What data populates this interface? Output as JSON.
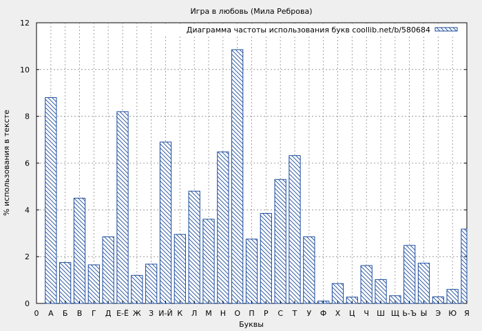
{
  "chart_data": {
    "type": "bar",
    "title": "Игра в любовь (Мила Реброва)",
    "xlabel": "Буквы",
    "ylabel": "% использования в тексте",
    "legend": "Диаграмма частоты использования букв coollib.net/b/580684",
    "legend_position": "top-right",
    "grid": true,
    "ylim": [
      0,
      12
    ],
    "yticks": [
      0,
      2,
      4,
      6,
      8,
      10,
      12
    ],
    "x_origin_label": "0",
    "categories": [
      "А",
      "Б",
      "В",
      "Г",
      "Д",
      "Е-Ё",
      "Ж",
      "З",
      "И-Й",
      "К",
      "Л",
      "М",
      "Н",
      "О",
      "П",
      "Р",
      "С",
      "Т",
      "У",
      "Ф",
      "Х",
      "Ц",
      "Ч",
      "Ш",
      "Щ",
      "Ь-Ъ",
      "Ы",
      "Э",
      "Ю",
      "Я"
    ],
    "values": [
      8.8,
      1.75,
      4.5,
      1.65,
      2.85,
      8.2,
      1.2,
      1.68,
      6.9,
      2.95,
      4.8,
      3.6,
      6.48,
      10.85,
      2.75,
      3.85,
      5.3,
      6.32,
      2.85,
      0.1,
      0.85,
      0.27,
      1.62,
      1.02,
      0.33,
      2.48,
      1.72,
      0.28,
      0.6,
      3.18
    ],
    "bar_color": "#1a4a9c"
  }
}
